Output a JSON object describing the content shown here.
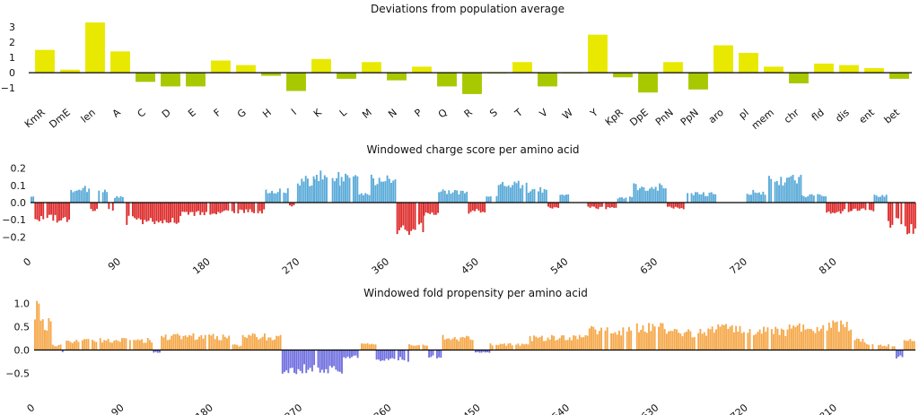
{
  "chart_data": [
    {
      "type": "bar",
      "title": "Deviations from population average",
      "categories": [
        "KmR",
        "DmE",
        "len",
        "A",
        "C",
        "D",
        "E",
        "F",
        "G",
        "H",
        "I",
        "K",
        "L",
        "M",
        "N",
        "P",
        "Q",
        "R",
        "S",
        "T",
        "V",
        "W",
        "Y",
        "KpR",
        "DpE",
        "PnN",
        "PpN",
        "aro",
        "pI",
        "mem",
        "chr",
        "fld",
        "dis",
        "ent",
        "bet"
      ],
      "values": [
        1.5,
        0.2,
        3.3,
        1.4,
        -0.6,
        -0.9,
        -0.9,
        0.8,
        0.5,
        -0.2,
        -1.2,
        0.9,
        -0.4,
        0.7,
        -0.5,
        0.4,
        -0.9,
        -1.4,
        0.0,
        0.7,
        -0.9,
        0.0,
        2.5,
        -0.3,
        -1.3,
        0.7,
        -1.1,
        1.8,
        1.3,
        0.4,
        -0.7,
        0.6,
        0.5,
        0.3,
        -0.4
      ],
      "positive_color": "#e8e800",
      "negative_color": "#a8c800",
      "yticks": [
        -1,
        0,
        1,
        2,
        3
      ],
      "ylim": [
        -1.7,
        3.6
      ]
    },
    {
      "type": "bar",
      "title": "Windowed charge score per amino acid",
      "positive_color": "#5aaad8",
      "negative_color": "#dd2c2c",
      "xticks": [
        0,
        90,
        180,
        270,
        360,
        450,
        540,
        630,
        720,
        810
      ],
      "ytick_labels": [
        "0.2",
        "0.1",
        "0.0",
        "−0.1",
        "−0.2"
      ],
      "yticks": [
        0.2,
        0.1,
        0.0,
        -0.1,
        -0.2
      ],
      "ylim": [
        -0.24,
        0.24
      ],
      "xlim": [
        0,
        890
      ],
      "bin_width": 2,
      "segments": [
        [
          0,
          4,
          0.04
        ],
        [
          4,
          40,
          -0.09
        ],
        [
          40,
          60,
          0.08
        ],
        [
          60,
          68,
          -0.04
        ],
        [
          68,
          78,
          0.06
        ],
        [
          78,
          84,
          -0.04
        ],
        [
          84,
          94,
          0.03
        ],
        [
          94,
          150,
          -0.1
        ],
        [
          150,
          190,
          -0.06
        ],
        [
          190,
          236,
          -0.05
        ],
        [
          236,
          260,
          0.07
        ],
        [
          260,
          268,
          -0.02
        ],
        [
          268,
          285,
          0.12
        ],
        [
          285,
          310,
          0.16
        ],
        [
          310,
          330,
          0.13
        ],
        [
          330,
          342,
          0.05
        ],
        [
          342,
          368,
          0.13
        ],
        [
          368,
          395,
          -0.15
        ],
        [
          395,
          410,
          -0.06
        ],
        [
          410,
          440,
          0.06
        ],
        [
          440,
          458,
          -0.05
        ],
        [
          458,
          470,
          0.03
        ],
        [
          470,
          500,
          0.11
        ],
        [
          500,
          520,
          0.07
        ],
        [
          520,
          532,
          -0.03
        ],
        [
          532,
          542,
          0.04
        ],
        [
          542,
          560,
          0.0
        ],
        [
          560,
          590,
          -0.03
        ],
        [
          590,
          606,
          0.03
        ],
        [
          606,
          640,
          0.09
        ],
        [
          640,
          660,
          -0.03
        ],
        [
          660,
          690,
          0.05
        ],
        [
          690,
          720,
          0.0
        ],
        [
          720,
          740,
          0.06
        ],
        [
          740,
          775,
          0.13
        ],
        [
          775,
          800,
          0.04
        ],
        [
          800,
          825,
          -0.05
        ],
        [
          825,
          848,
          -0.04
        ],
        [
          848,
          862,
          0.04
        ],
        [
          862,
          875,
          -0.12
        ],
        [
          875,
          890,
          -0.16
        ]
      ]
    },
    {
      "type": "bar",
      "title": "Windowed fold propensity per amino acid",
      "positive_color": "#f5a84a",
      "negative_color": "#7070e0",
      "xticks": [
        0,
        90,
        180,
        270,
        360,
        450,
        540,
        630,
        720,
        810
      ],
      "ytick_labels": [
        "1.0",
        "0.5",
        "0.0",
        "−0.5"
      ],
      "yticks": [
        1.0,
        0.5,
        0.0,
        -0.5
      ],
      "ylim": [
        -0.8,
        1.05
      ],
      "xlim": [
        0,
        890
      ],
      "bin_width": 2,
      "segments": [
        [
          0,
          6,
          0.85
        ],
        [
          6,
          18,
          0.55
        ],
        [
          18,
          28,
          0.1
        ],
        [
          28,
          32,
          -0.05
        ],
        [
          32,
          120,
          0.2
        ],
        [
          120,
          128,
          -0.05
        ],
        [
          128,
          200,
          0.28
        ],
        [
          200,
          210,
          0.1
        ],
        [
          210,
          250,
          0.28
        ],
        [
          250,
          312,
          -0.4
        ],
        [
          312,
          330,
          -0.15
        ],
        [
          330,
          345,
          0.12
        ],
        [
          345,
          378,
          -0.2
        ],
        [
          378,
          398,
          0.1
        ],
        [
          398,
          412,
          -0.15
        ],
        [
          412,
          445,
          0.25
        ],
        [
          445,
          460,
          -0.05
        ],
        [
          460,
          500,
          0.12
        ],
        [
          500,
          520,
          0.25
        ],
        [
          520,
          560,
          0.25
        ],
        [
          560,
          600,
          0.4
        ],
        [
          600,
          640,
          0.45
        ],
        [
          640,
          680,
          0.35
        ],
        [
          680,
          720,
          0.45
        ],
        [
          720,
          760,
          0.4
        ],
        [
          760,
          800,
          0.45
        ],
        [
          800,
          826,
          0.5
        ],
        [
          826,
          840,
          0.2
        ],
        [
          840,
          870,
          0.1
        ],
        [
          870,
          878,
          -0.15
        ],
        [
          878,
          890,
          0.2
        ]
      ]
    }
  ]
}
